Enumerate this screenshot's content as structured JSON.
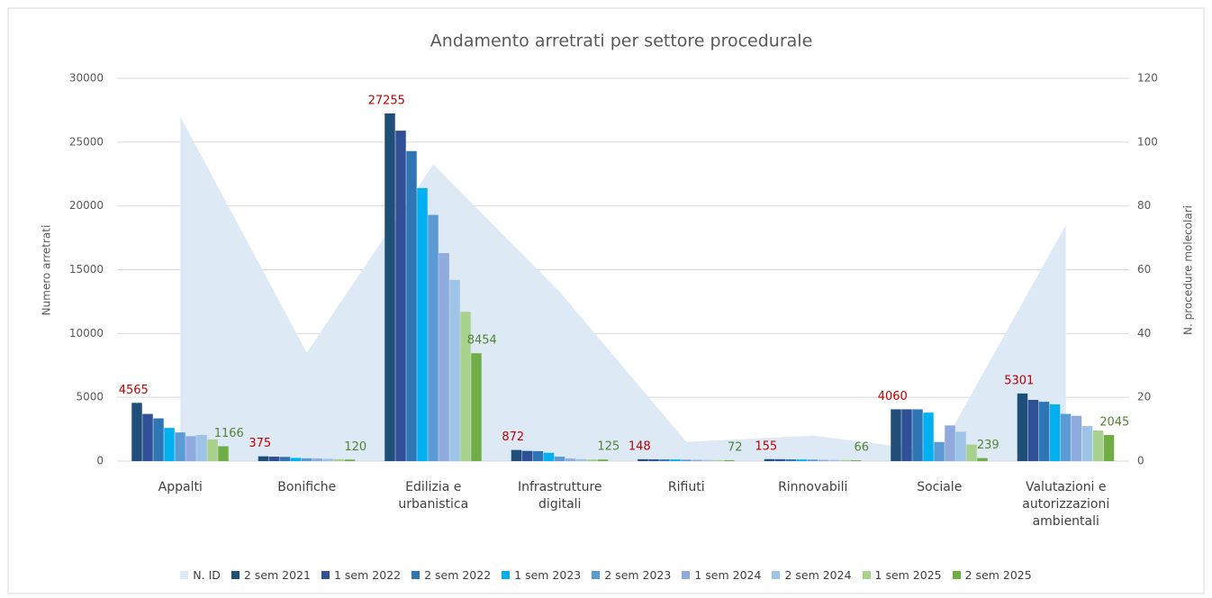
{
  "chart_data": {
    "type": "bar",
    "title": "Andamento arretrati per settore procedurale",
    "y_label": "Numero arretrati",
    "y2_label": "N. procedure molecolari",
    "categories": [
      "Appalti",
      "Bonifiche",
      "Edilizia e urbanistica",
      "Infrastrutture digitali",
      "Rifiuti",
      "Rinnovabili",
      "Sociale",
      "Valutazioni e autorizzazioni ambientali"
    ],
    "ylim": [
      0,
      30000
    ],
    "yticks": [
      0,
      5000,
      10000,
      15000,
      20000,
      25000,
      30000
    ],
    "y2lim": [
      0,
      120
    ],
    "y2ticks": [
      0,
      20,
      40,
      60,
      80,
      100,
      120
    ],
    "grid": true,
    "legend": "bottom",
    "series": [
      {
        "name": "N. ID",
        "type": "area",
        "axis": "y2",
        "color": "#dde9f5",
        "values": [
          108,
          34,
          93,
          53,
          6,
          8,
          3,
          74
        ]
      },
      {
        "name": "2 sem 2021",
        "color": "#1f4e79",
        "values": [
          4565,
          375,
          27255,
          872,
          148,
          155,
          4060,
          5301
        ]
      },
      {
        "name": "1 sem 2022",
        "color": "#2f4f96",
        "values": [
          3700,
          350,
          25900,
          800,
          140,
          150,
          4060,
          4800
        ]
      },
      {
        "name": "2 sem 2022",
        "color": "#2e75b6",
        "values": [
          3350,
          330,
          24300,
          780,
          135,
          140,
          4060,
          4650
        ]
      },
      {
        "name": "1 sem 2023",
        "color": "#00b0f0",
        "values": [
          2600,
          250,
          21400,
          650,
          130,
          130,
          3800,
          4450
        ]
      },
      {
        "name": "2 sem 2023",
        "color": "#5b9bd5",
        "values": [
          2250,
          220,
          19300,
          350,
          110,
          120,
          1500,
          3700
        ]
      },
      {
        "name": "1 sem 2024",
        "color": "#8faadc",
        "values": [
          1950,
          200,
          16300,
          200,
          100,
          100,
          2800,
          3550
        ]
      },
      {
        "name": "2 sem 2024",
        "color": "#9dc3e6",
        "values": [
          2050,
          180,
          14200,
          150,
          90,
          90,
          2300,
          2750
        ]
      },
      {
        "name": "1 sem 2025",
        "color": "#a9d18e",
        "values": [
          1700,
          150,
          11700,
          130,
          80,
          80,
          1300,
          2400
        ]
      },
      {
        "name": "2 sem 2025",
        "color": "#70ad47",
        "values": [
          1166,
          120,
          8454,
          125,
          72,
          66,
          239,
          2045
        ]
      }
    ]
  }
}
